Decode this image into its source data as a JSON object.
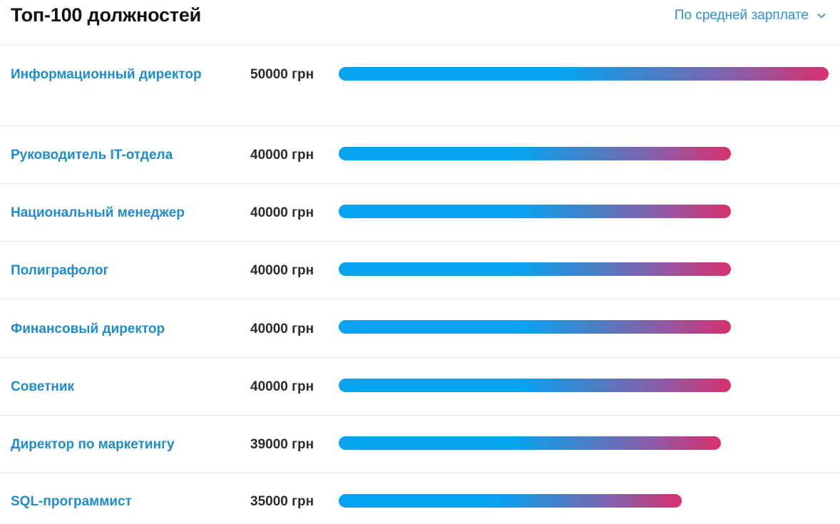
{
  "header": {
    "title": "Топ-100 должностей",
    "sort_label": "По средней зарплате"
  },
  "colors": {
    "name_link": "#1f8ccf",
    "sort_link": "#2f8fd6",
    "bar_start": "#07a3f1",
    "bar_end": "#d8306e"
  },
  "chart_data": {
    "type": "bar",
    "orientation": "horizontal",
    "title": "Топ-100 должностей",
    "categories": [
      "Информационный директор",
      "Руководитель IT-отдела",
      "Национальный менеджер",
      "Полиграфолог",
      "Финансовый директор",
      "Советник",
      "Директор по маркетингу",
      "SQL-программист"
    ],
    "values": [
      50000,
      40000,
      40000,
      40000,
      40000,
      40000,
      39000,
      35000
    ],
    "value_labels": [
      "50000 грн",
      "40000 грн",
      "40000 грн",
      "40000 грн",
      "40000 грн",
      "40000 грн",
      "39000 грн",
      "35000 грн"
    ],
    "unit": "грн",
    "xlim": [
      0,
      50000
    ],
    "grid": false,
    "legend": "none"
  }
}
